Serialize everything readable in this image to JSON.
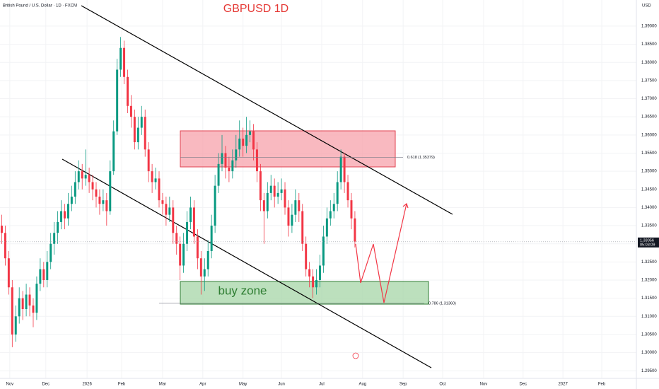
{
  "chart_data": {
    "type": "candlestick",
    "header": "British Pound / U.S. Dollar · 1D · FXCM",
    "title": "GBPUSD 1D",
    "currency": "USD",
    "up_color": "#089981",
    "down_color": "#f23645",
    "ohlc": [
      [
        1.335,
        1.338,
        1.33,
        1.333
      ],
      [
        1.333,
        1.335,
        1.324,
        1.326
      ],
      [
        1.326,
        1.328,
        1.316,
        1.318
      ],
      [
        1.318,
        1.32,
        1.3015,
        1.305
      ],
      [
        1.305,
        1.313,
        1.303,
        1.31
      ],
      [
        1.31,
        1.318,
        1.308,
        1.315
      ],
      [
        1.315,
        1.317,
        1.309,
        1.312
      ],
      [
        1.312,
        1.319,
        1.31,
        1.316
      ],
      [
        1.316,
        1.318,
        1.31,
        1.313
      ],
      [
        1.313,
        1.315,
        1.307,
        1.311
      ],
      [
        1.311,
        1.321,
        1.309,
        1.319
      ],
      [
        1.319,
        1.326,
        1.317,
        1.323
      ],
      [
        1.323,
        1.325,
        1.318,
        1.32
      ],
      [
        1.32,
        1.328,
        1.318,
        1.325
      ],
      [
        1.325,
        1.333,
        1.323,
        1.33
      ],
      [
        1.33,
        1.336,
        1.327,
        1.333
      ],
      [
        1.333,
        1.339,
        1.33,
        1.336
      ],
      [
        1.336,
        1.342,
        1.334,
        1.339
      ],
      [
        1.339,
        1.341,
        1.334,
        1.337
      ],
      [
        1.337,
        1.344,
        1.335,
        1.341
      ],
      [
        1.341,
        1.346,
        1.339,
        1.343
      ],
      [
        1.343,
        1.35,
        1.341,
        1.347
      ],
      [
        1.347,
        1.353,
        1.345,
        1.35
      ],
      [
        1.35,
        1.352,
        1.345,
        1.348
      ],
      [
        1.348,
        1.356,
        1.346,
        1.349
      ],
      [
        1.349,
        1.351,
        1.344,
        1.347
      ],
      [
        1.347,
        1.349,
        1.342,
        1.345
      ],
      [
        1.345,
        1.347,
        1.34,
        1.343
      ],
      [
        1.343,
        1.345,
        1.338,
        1.341
      ],
      [
        1.341,
        1.345,
        1.339,
        1.342
      ],
      [
        1.342,
        1.344,
        1.335,
        1.339
      ],
      [
        1.339,
        1.353,
        1.338,
        1.35
      ],
      [
        1.35,
        1.364,
        1.349,
        1.361
      ],
      [
        1.361,
        1.381,
        1.36,
        1.378
      ],
      [
        1.378,
        1.387,
        1.376,
        1.384
      ],
      [
        1.384,
        1.386,
        1.374,
        1.376
      ],
      [
        1.376,
        1.378,
        1.366,
        1.368
      ],
      [
        1.368,
        1.371,
        1.362,
        1.365
      ],
      [
        1.365,
        1.367,
        1.356,
        1.358
      ],
      [
        1.358,
        1.365,
        1.356,
        1.362
      ],
      [
        1.362,
        1.368,
        1.36,
        1.365
      ],
      [
        1.365,
        1.367,
        1.354,
        1.356
      ],
      [
        1.356,
        1.358,
        1.347,
        1.35
      ],
      [
        1.35,
        1.352,
        1.344,
        1.347
      ],
      [
        1.347,
        1.351,
        1.345,
        1.348
      ],
      [
        1.348,
        1.35,
        1.34,
        1.342
      ],
      [
        1.342,
        1.344,
        1.338,
        1.341
      ],
      [
        1.341,
        1.343,
        1.335,
        1.338
      ],
      [
        1.338,
        1.343,
        1.336,
        1.34
      ],
      [
        1.34,
        1.342,
        1.33,
        1.333
      ],
      [
        1.333,
        1.335,
        1.327,
        1.33
      ],
      [
        1.33,
        1.332,
        1.32,
        1.324
      ],
      [
        1.324,
        1.333,
        1.322,
        1.33
      ],
      [
        1.33,
        1.339,
        1.328,
        1.336
      ],
      [
        1.336,
        1.343,
        1.334,
        1.34
      ],
      [
        1.34,
        1.342,
        1.33,
        1.332
      ],
      [
        1.332,
        1.334,
        1.323,
        1.326
      ],
      [
        1.326,
        1.328,
        1.316,
        1.321
      ],
      [
        1.321,
        1.326,
        1.317,
        1.323
      ],
      [
        1.323,
        1.331,
        1.321,
        1.328
      ],
      [
        1.328,
        1.338,
        1.326,
        1.335
      ],
      [
        1.335,
        1.349,
        1.333,
        1.346
      ],
      [
        1.346,
        1.355,
        1.344,
        1.352
      ],
      [
        1.352,
        1.36,
        1.35,
        1.355
      ],
      [
        1.355,
        1.357,
        1.348,
        1.351
      ],
      [
        1.351,
        1.354,
        1.347,
        1.35
      ],
      [
        1.35,
        1.356,
        1.348,
        1.353
      ],
      [
        1.353,
        1.36,
        1.351,
        1.356
      ],
      [
        1.356,
        1.364,
        1.354,
        1.359
      ],
      [
        1.359,
        1.362,
        1.354,
        1.357
      ],
      [
        1.357,
        1.365,
        1.355,
        1.36
      ],
      [
        1.36,
        1.364,
        1.358,
        1.361
      ],
      [
        1.361,
        1.363,
        1.353,
        1.356
      ],
      [
        1.356,
        1.358,
        1.347,
        1.35
      ],
      [
        1.35,
        1.352,
        1.339,
        1.342
      ],
      [
        1.342,
        1.344,
        1.33,
        1.339
      ],
      [
        1.339,
        1.347,
        1.337,
        1.344
      ],
      [
        1.344,
        1.349,
        1.342,
        1.346
      ],
      [
        1.346,
        1.348,
        1.34,
        1.343
      ],
      [
        1.343,
        1.347,
        1.341,
        1.344
      ],
      [
        1.344,
        1.348,
        1.342,
        1.345
      ],
      [
        1.345,
        1.347,
        1.338,
        1.34
      ],
      [
        1.34,
        1.342,
        1.332,
        1.335
      ],
      [
        1.335,
        1.341,
        1.333,
        1.338
      ],
      [
        1.338,
        1.345,
        1.336,
        1.342
      ],
      [
        1.342,
        1.344,
        1.336,
        1.339
      ],
      [
        1.339,
        1.341,
        1.328,
        1.33
      ],
      [
        1.33,
        1.332,
        1.321,
        1.323
      ],
      [
        1.323,
        1.325,
        1.318,
        1.321
      ],
      [
        1.321,
        1.323,
        1.315,
        1.318
      ],
      [
        1.318,
        1.323,
        1.316,
        1.32
      ],
      [
        1.32,
        1.327,
        1.318,
        1.324
      ],
      [
        1.324,
        1.335,
        1.322,
        1.332
      ],
      [
        1.332,
        1.34,
        1.33,
        1.337
      ],
      [
        1.337,
        1.342,
        1.335,
        1.339
      ],
      [
        1.339,
        1.344,
        1.337,
        1.341
      ],
      [
        1.341,
        1.35,
        1.339,
        1.347
      ],
      [
        1.347,
        1.356,
        1.345,
        1.354
      ],
      [
        1.354,
        1.355,
        1.344,
        1.347
      ],
      [
        1.347,
        1.349,
        1.34,
        1.342
      ],
      [
        1.342,
        1.344,
        1.334,
        1.337
      ],
      [
        1.337,
        1.339,
        1.329,
        1.3306
      ]
    ],
    "xlim": [
      -0.5,
      181.5
    ],
    "xticks": [
      {
        "value": 2.3,
        "label": "Nov"
      },
      {
        "value": 12.6,
        "label": "Dec"
      },
      {
        "value": 24.4,
        "label": "2026"
      },
      {
        "value": 34.3,
        "label": "Feb"
      },
      {
        "value": 46,
        "label": "Mar"
      },
      {
        "value": 57.5,
        "label": "Apr"
      },
      {
        "value": 69,
        "label": "May"
      },
      {
        "value": 80,
        "label": "Jun"
      },
      {
        "value": 91.5,
        "label": "Jul"
      },
      {
        "value": 103.2,
        "label": "Aug"
      },
      {
        "value": 114.8,
        "label": "Sep"
      },
      {
        "value": 126.1,
        "label": "Oct"
      },
      {
        "value": 137.8,
        "label": "Nov"
      },
      {
        "value": 149.1,
        "label": "Dec"
      },
      {
        "value": 160.5,
        "label": "2027"
      },
      {
        "value": 171.6,
        "label": "Feb"
      }
    ],
    "ylim": [
      1.2929,
      1.3972
    ],
    "yticks": [
      {
        "value": 1.295,
        "label": "1.29500"
      },
      {
        "value": 1.3,
        "label": "1.30000"
      },
      {
        "value": 1.305,
        "label": "1.30500"
      },
      {
        "value": 1.31,
        "label": "1.31000"
      },
      {
        "value": 1.315,
        "label": "1.31500"
      },
      {
        "value": 1.32,
        "label": "1.32000"
      },
      {
        "value": 1.325,
        "label": "1.32500"
      },
      {
        "value": 1.33,
        "label": "1.33000"
      },
      {
        "value": 1.335,
        "label": "1.33500"
      },
      {
        "value": 1.34,
        "label": "1.34000"
      },
      {
        "value": 1.345,
        "label": "1.34500"
      },
      {
        "value": 1.35,
        "label": "1.35000"
      },
      {
        "value": 1.355,
        "label": "1.35500"
      },
      {
        "value": 1.36,
        "label": "1.36000"
      },
      {
        "value": 1.365,
        "label": "1.36500"
      },
      {
        "value": 1.37,
        "label": "1.37000"
      },
      {
        "value": 1.375,
        "label": "1.37500"
      },
      {
        "value": 1.38,
        "label": "1.38000"
      },
      {
        "value": 1.385,
        "label": "1.38500"
      },
      {
        "value": 1.39,
        "label": "1.39000"
      }
    ],
    "fib_levels": [
      {
        "price": 1.35379,
        "label": "0.618 (1.35379)"
      },
      {
        "price": 1.3136,
        "label": "0.786 (1.31360)"
      }
    ],
    "zone_label": "buy zone",
    "last_price": 1.33056,
    "countdown": "05:03:09"
  }
}
